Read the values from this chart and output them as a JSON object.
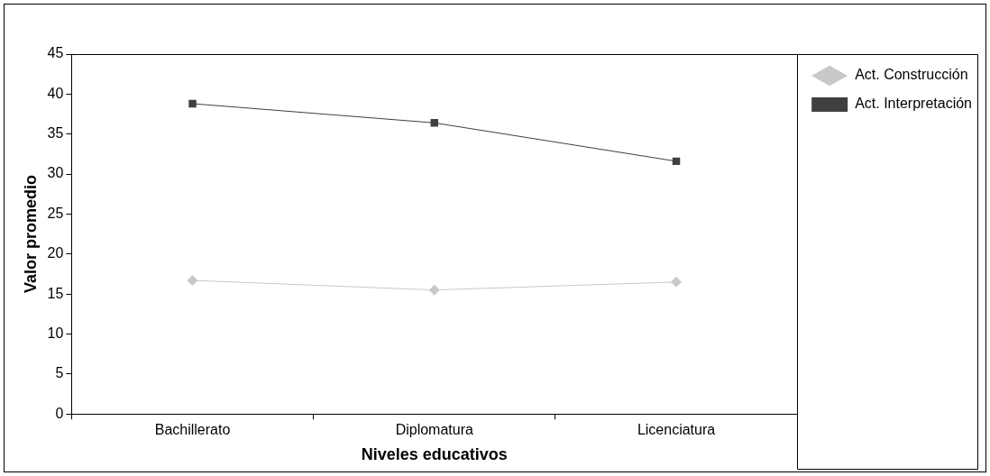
{
  "chart_data": {
    "type": "line",
    "xlabel": "Niveles educativos",
    "ylabel": "Valor promedio",
    "categories": [
      "Bachillerato",
      "Diplomatura",
      "Licenciatura"
    ],
    "series": [
      {
        "name": "Act. Construcción",
        "color": "#c8c8c8",
        "marker": "diamond",
        "values": [
          16.7,
          15.5,
          16.5
        ]
      },
      {
        "name": "Act. Interpretación",
        "color": "#404040",
        "marker": "square",
        "values": [
          38.8,
          36.4,
          31.6
        ]
      }
    ],
    "ylim": [
      0,
      45
    ],
    "yticks": [
      0,
      5,
      10,
      15,
      20,
      25,
      30,
      35,
      40,
      45
    ],
    "grid": false,
    "legend": "right",
    "line_style": "solid"
  }
}
